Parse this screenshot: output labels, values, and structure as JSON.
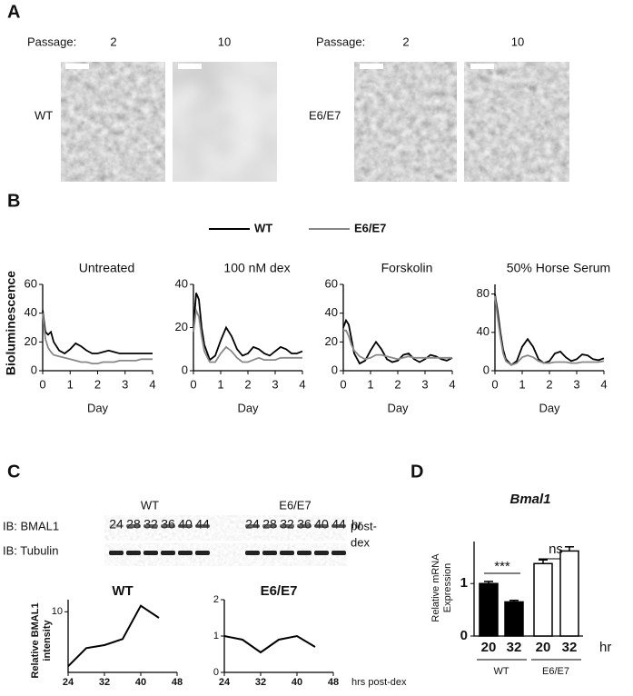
{
  "panel_labels": [
    "A",
    "B",
    "C",
    "D"
  ],
  "panel_a": {
    "groups": [
      {
        "row_label": "WT",
        "passage_label": "Passage:",
        "passages": [
          "2",
          "10"
        ]
      },
      {
        "row_label": "E6/E7",
        "passage_label": "Passage:",
        "passages": [
          "2",
          "10"
        ]
      }
    ]
  },
  "panel_c": {
    "groups": [
      {
        "label": "WT",
        "lanes": [
          "24",
          "28",
          "32",
          "36",
          "40",
          "44"
        ]
      },
      {
        "label": "E6/E7",
        "lanes": [
          "24",
          "28",
          "32",
          "36",
          "40",
          "44"
        ]
      }
    ],
    "unit": "hr",
    "rows": [
      "IB: BMAL1",
      "IB: Tubulin"
    ],
    "note": [
      "post-",
      "dex"
    ]
  },
  "chart_data": [
    {
      "type": "line",
      "title": "Untreated",
      "ylabel": "Bioluminescence",
      "xlabel": "Day",
      "x": [
        0,
        0.1,
        0.2,
        0.3,
        0.4,
        0.6,
        0.8,
        1.0,
        1.2,
        1.4,
        1.6,
        1.8,
        2.0,
        2.2,
        2.4,
        2.6,
        2.8,
        3.0,
        3.2,
        3.4,
        3.6,
        3.8,
        4.0
      ],
      "xlim": [
        0,
        4
      ],
      "xticks": [
        0,
        1,
        2,
        3,
        4
      ],
      "ylim": [
        0,
        60
      ],
      "yticks": [
        0,
        20,
        40,
        60
      ],
      "series": [
        {
          "name": "WT",
          "color": "#000000",
          "values": [
            42,
            27,
            25,
            27,
            20,
            14,
            12,
            15,
            19,
            17,
            14,
            12,
            12,
            13,
            14,
            13,
            12,
            12,
            12,
            12,
            12,
            12,
            12
          ]
        },
        {
          "name": "E6/E7",
          "color": "#888888",
          "values": [
            40,
            22,
            16,
            13,
            11,
            10,
            9,
            8,
            7,
            6,
            6,
            5,
            5,
            6,
            6,
            6,
            7,
            7,
            7,
            7,
            8,
            8,
            8
          ]
        }
      ]
    },
    {
      "type": "line",
      "title": "100 nM dex",
      "xlabel": "Day",
      "x": [
        0,
        0.1,
        0.2,
        0.3,
        0.4,
        0.6,
        0.8,
        1.0,
        1.2,
        1.4,
        1.6,
        1.8,
        2.0,
        2.2,
        2.4,
        2.6,
        2.8,
        3.0,
        3.2,
        3.4,
        3.6,
        3.8,
        4.0
      ],
      "xlim": [
        0,
        4
      ],
      "xticks": [
        0,
        1,
        2,
        3,
        4
      ],
      "ylim": [
        0,
        40
      ],
      "yticks": [
        0,
        20,
        40
      ],
      "series": [
        {
          "color": "#000000",
          "values": [
            20,
            36,
            33,
            20,
            12,
            5,
            7,
            14,
            20,
            16,
            10,
            7,
            8,
            11,
            10,
            8,
            7,
            9,
            11,
            10,
            8,
            8,
            9
          ]
        },
        {
          "color": "#888888",
          "values": [
            18,
            28,
            25,
            16,
            9,
            4,
            4,
            8,
            11,
            9,
            6,
            4,
            4,
            5,
            6,
            5,
            5,
            5,
            6,
            6,
            6,
            6,
            6
          ]
        }
      ]
    },
    {
      "type": "line",
      "title": "Forskolin",
      "xlabel": "Day",
      "x": [
        0,
        0.1,
        0.2,
        0.3,
        0.4,
        0.6,
        0.8,
        1.0,
        1.2,
        1.4,
        1.6,
        1.8,
        2.0,
        2.2,
        2.4,
        2.6,
        2.8,
        3.0,
        3.2,
        3.4,
        3.6,
        3.8,
        4.0
      ],
      "xlim": [
        0,
        4
      ],
      "xticks": [
        0,
        1,
        2,
        3,
        4
      ],
      "ylim": [
        0,
        60
      ],
      "yticks": [
        0,
        20,
        40,
        60
      ],
      "series": [
        {
          "color": "#000000",
          "values": [
            30,
            35,
            32,
            22,
            12,
            5,
            7,
            14,
            20,
            15,
            8,
            6,
            7,
            11,
            12,
            8,
            6,
            8,
            11,
            10,
            8,
            7,
            9
          ]
        },
        {
          "color": "#888888",
          "values": [
            28,
            28,
            24,
            18,
            14,
            10,
            8,
            9,
            11,
            11,
            10,
            9,
            8,
            9,
            10,
            9,
            9,
            9,
            9,
            9,
            9,
            9,
            9
          ]
        }
      ]
    },
    {
      "type": "line",
      "title": "50% Horse Serum",
      "xlabel": "Day",
      "x": [
        0,
        0.1,
        0.2,
        0.3,
        0.4,
        0.6,
        0.8,
        1.0,
        1.2,
        1.4,
        1.6,
        1.8,
        2.0,
        2.2,
        2.4,
        2.6,
        2.8,
        3.0,
        3.2,
        3.4,
        3.6,
        3.8,
        4.0
      ],
      "xlim": [
        0,
        4
      ],
      "xticks": [
        0,
        1,
        2,
        3,
        4
      ],
      "ylim": [
        0,
        90
      ],
      "yticks": [
        0,
        40,
        80
      ],
      "series": [
        {
          "color": "#000000",
          "values": [
            80,
            62,
            40,
            22,
            12,
            6,
            10,
            25,
            33,
            25,
            12,
            8,
            10,
            18,
            20,
            14,
            10,
            12,
            17,
            16,
            12,
            11,
            13
          ]
        },
        {
          "color": "#888888",
          "values": [
            78,
            55,
            35,
            18,
            10,
            6,
            8,
            14,
            16,
            14,
            10,
            8,
            8,
            9,
            9,
            9,
            8,
            8,
            9,
            9,
            9,
            9,
            10
          ]
        }
      ]
    },
    {
      "type": "line",
      "title": "WT",
      "ylabel": [
        "Relative BMAL1",
        "intensity"
      ],
      "x": [
        24,
        28,
        32,
        36,
        40,
        44
      ],
      "xlim": [
        24,
        48
      ],
      "xticks": [
        24,
        32,
        40,
        48
      ],
      "ylim": [
        0,
        12
      ],
      "yticks": [
        10
      ],
      "series": [
        {
          "color": "#000000",
          "values": [
            1,
            4,
            4.5,
            5.5,
            11,
            9
          ]
        }
      ]
    },
    {
      "type": "line",
      "title": "E6/E7",
      "xlabel": "hrs post-dex",
      "x": [
        24,
        28,
        32,
        36,
        40,
        44
      ],
      "xlim": [
        24,
        48
      ],
      "xticks": [
        24,
        32,
        40,
        48
      ],
      "ylim": [
        0,
        2
      ],
      "yticks": [
        0,
        1,
        2
      ],
      "series": [
        {
          "color": "#000000",
          "values": [
            1,
            0.9,
            0.55,
            0.9,
            1,
            0.7
          ]
        }
      ]
    },
    {
      "type": "bar",
      "title": "Bmal1",
      "ylabel": [
        "Relative mRNA",
        "Expression"
      ],
      "categories": [
        "20",
        "32",
        "20",
        "32"
      ],
      "groups": [
        "WT",
        "E6/E7"
      ],
      "unit": "hr",
      "values": [
        1.0,
        0.65,
        1.38,
        1.62
      ],
      "errors": [
        0.04,
        0.03,
        0.07,
        0.08
      ],
      "colors": [
        "#000000",
        "#000000",
        "#ffffff",
        "#ffffff"
      ],
      "significance": [
        "***",
        "ns"
      ],
      "ylim": [
        0,
        1.8
      ],
      "yticks": [
        0,
        1
      ]
    }
  ]
}
